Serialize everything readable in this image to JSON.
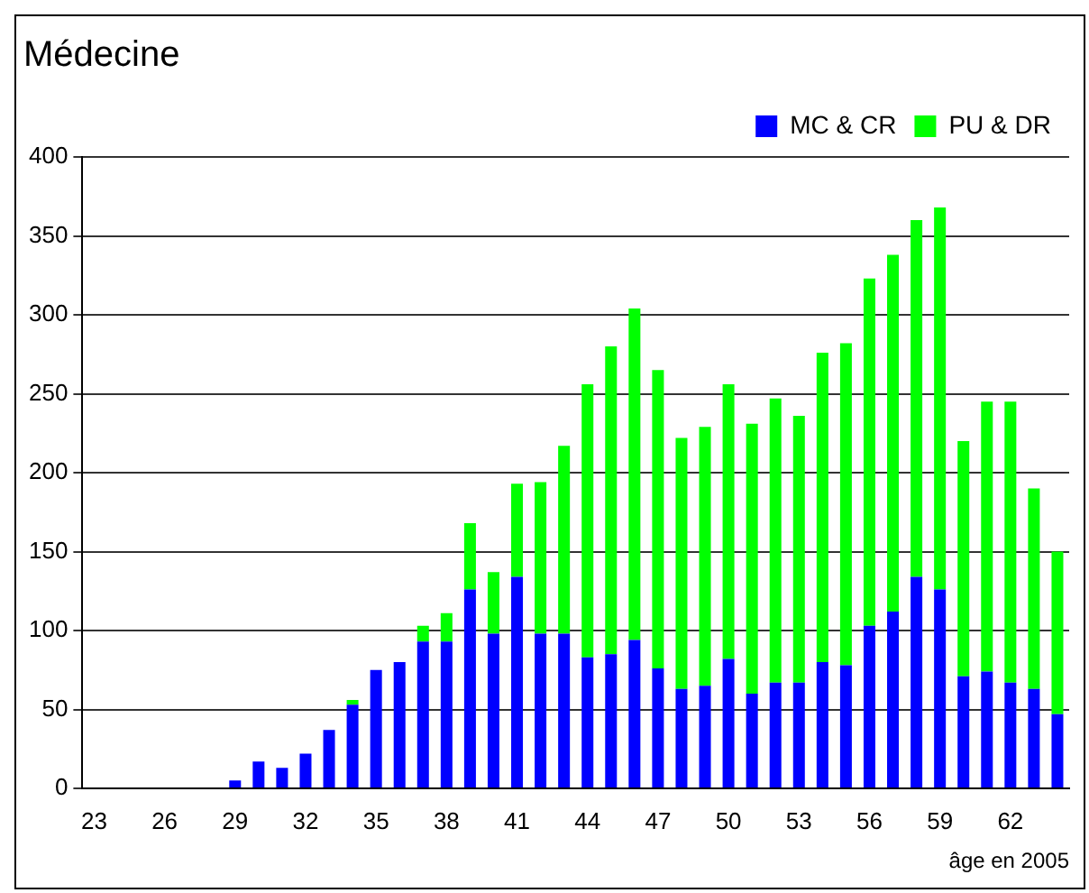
{
  "chart_data": {
    "type": "bar",
    "title": "Médecine",
    "xlabel": "âge en 2005",
    "stacked": true,
    "categories": [
      "23",
      null,
      null,
      "26",
      null,
      null,
      "29",
      null,
      null,
      "32",
      null,
      null,
      "35",
      null,
      null,
      "38",
      null,
      null,
      "41",
      null,
      null,
      "44",
      null,
      null,
      "47",
      null,
      null,
      "50",
      null,
      null,
      "53",
      null,
      null,
      "56",
      null,
      null,
      "59",
      null,
      null,
      "62",
      null,
      null
    ],
    "series": [
      {
        "name": "MC & CR",
        "color": "#0000ff",
        "values": [
          0,
          0,
          0,
          0,
          0,
          0,
          5,
          17,
          13,
          22,
          37,
          53,
          75,
          80,
          93,
          93,
          126,
          98,
          134,
          98,
          98,
          83,
          85,
          94,
          76,
          63,
          65,
          82,
          60,
          67,
          67,
          80,
          78,
          103,
          112,
          134,
          126,
          71,
          74,
          67,
          63,
          47
        ]
      },
      {
        "name": "PU & DR",
        "color": "#00ff00",
        "values": [
          0,
          0,
          0,
          0,
          0,
          0,
          0,
          0,
          0,
          0,
          0,
          3,
          0,
          0,
          10,
          18,
          42,
          39,
          59,
          96,
          119,
          173,
          195,
          210,
          189,
          159,
          164,
          174,
          171,
          180,
          169,
          196,
          204,
          220,
          226,
          226,
          242,
          149,
          171,
          178,
          127,
          103
        ]
      }
    ],
    "ylim": [
      0,
      400
    ],
    "yticks": [
      0,
      50,
      100,
      150,
      200,
      250,
      300,
      350,
      400
    ],
    "grid": "y",
    "legend": "top right"
  }
}
